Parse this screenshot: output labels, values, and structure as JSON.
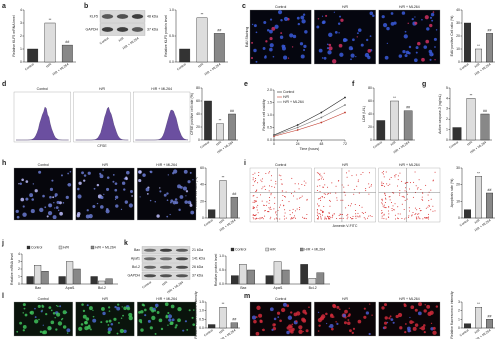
{
  "chart_data": [
    {
      "type": "bar",
      "panel": "a",
      "ylabel": "Relative KLF5 mRNA level",
      "categories": [
        "Control",
        "H/R",
        "H/R + ML264"
      ],
      "values": [
        1,
        3,
        1.3
      ],
      "colors": [
        "#333333",
        "#dddddd",
        "#888888"
      ],
      "ylim": [
        0,
        4
      ],
      "yticks": [
        0,
        1,
        2,
        3,
        4
      ],
      "marks": [
        null,
        "**",
        "##"
      ]
    },
    {
      "type": "bar",
      "panel": "b",
      "ylabel": "Relative KLF5 protein level",
      "categories": [
        "Control",
        "H/R",
        "H/R + ML264"
      ],
      "values": [
        0.25,
        0.85,
        0.55
      ],
      "colors": [
        "#333333",
        "#dddddd",
        "#888888"
      ],
      "ylim": [
        0,
        1
      ],
      "yticks": [
        {
          "value": 0,
          "label": "0.0"
        },
        {
          "value": 0.5,
          "label": "0.5"
        },
        {
          "value": 1,
          "label": "1.0"
        }
      ],
      "marks": [
        null,
        "**",
        "##"
      ]
    },
    {
      "type": "bar",
      "panel": "c",
      "ylabel": "EdU positive Cell ratio (%)",
      "categories": [
        "Control",
        "H/R",
        "H/R + ML264"
      ],
      "values": [
        30,
        10,
        22
      ],
      "colors": [
        "#333333",
        "#dddddd",
        "#888888"
      ],
      "ylim": [
        0,
        40
      ],
      "yticks": [
        0,
        10,
        20,
        30,
        40
      ],
      "marks": [
        null,
        "**",
        "##"
      ]
    },
    {
      "type": "bar",
      "panel": "d",
      "ylabel": "CFSE positive cell rate (%)",
      "categories": [
        "Control",
        "H/R",
        "H/R + ML264"
      ],
      "values": [
        60,
        25,
        40
      ],
      "colors": [
        "#333333",
        "#dddddd",
        "#888888"
      ],
      "ylim": [
        0,
        80
      ],
      "yticks": [
        0,
        20,
        40,
        60,
        80
      ],
      "marks": [
        null,
        "**",
        "##"
      ]
    },
    {
      "type": "line",
      "panel": "e",
      "ylabel": "Relative cell viability",
      "xlabel": "Time (hours)",
      "x": [
        0,
        24,
        48,
        72
      ],
      "xlim": [
        0,
        72
      ],
      "xticks": [
        0,
        24,
        48,
        72
      ],
      "ylim": [
        0,
        2
      ],
      "yticks": [
        {
          "value": 0,
          "label": "0.0"
        },
        {
          "value": 0.5,
          "label": "0.5"
        },
        {
          "value": 1,
          "label": "1.0"
        },
        {
          "value": 1.5,
          "label": "1.5"
        },
        {
          "value": 2,
          "label": "2.0"
        }
      ],
      "series": [
        {
          "name": "Control",
          "color": "#222222",
          "values": [
            0.2,
            0.6,
            1.1,
            1.7
          ]
        },
        {
          "name": "H/R",
          "color": "#c0392b",
          "values": [
            0.15,
            0.4,
            0.7,
            1.1
          ]
        },
        {
          "name": "H/R + ML264",
          "color": "#777777",
          "values": [
            0.18,
            0.5,
            0.9,
            1.4
          ]
        }
      ]
    },
    {
      "type": "bar",
      "panel": "f",
      "ylabel": "LDH (U/L)",
      "categories": [
        "Control",
        "H/R",
        "H/R + ML264"
      ],
      "values": [
        30,
        60,
        45
      ],
      "colors": [
        "#333333",
        "#dddddd",
        "#888888"
      ],
      "ylim": [
        0,
        80
      ],
      "yticks": [
        0,
        20,
        40,
        60,
        80
      ],
      "marks": [
        null,
        "**",
        "##"
      ]
    },
    {
      "type": "bar",
      "panel": "g",
      "ylabel": "Active caspase-3 (ng/mL)",
      "categories": [
        "Control",
        "H/R",
        "H/R + ML264"
      ],
      "values": [
        1.2,
        4,
        2.5
      ],
      "colors": [
        "#333333",
        "#dddddd",
        "#888888"
      ],
      "ylim": [
        0,
        5
      ],
      "yticks": [
        0,
        1,
        2,
        3,
        4,
        5
      ],
      "marks": [
        null,
        "**",
        "##"
      ]
    },
    {
      "type": "bar",
      "panel": "h",
      "ylabel": "Positive cell ratio (%)",
      "categories": [
        "Control",
        "H/R",
        "H/R + ML264"
      ],
      "values": [
        10,
        45,
        25
      ],
      "colors": [
        "#333333",
        "#dddddd",
        "#888888"
      ],
      "ylim": [
        0,
        60
      ],
      "yticks": [
        0,
        20,
        40,
        60
      ],
      "marks": [
        null,
        "**",
        "##"
      ]
    },
    {
      "type": "bar",
      "panel": "i",
      "ylabel": "Apoptosis rate (%)",
      "categories": [
        "Control",
        "H/R",
        "H/R + ML264"
      ],
      "values": [
        5,
        25,
        15
      ],
      "colors": [
        "#333333",
        "#dddddd",
        "#888888"
      ],
      "ylim": [
        0,
        30
      ],
      "yticks": [
        0,
        10,
        20,
        30
      ],
      "marks": [
        null,
        "**",
        "##"
      ]
    },
    {
      "type": "grouped",
      "panel": "j",
      "ylabel": "Relative mRNA level",
      "categories": [
        "Bax",
        "Apaf1",
        "Bcl-2"
      ],
      "ylim": [
        0,
        4
      ],
      "yticks": [
        0,
        1,
        2,
        3,
        4
      ],
      "series": [
        {
          "name": "Control",
          "color": "#333333",
          "values": [
            1,
            1,
            1
          ]
        },
        {
          "name": "H/R",
          "color": "#dddddd",
          "values": [
            2.5,
            3,
            0.4
          ]
        },
        {
          "name": "H/R + ML264",
          "color": "#888888",
          "values": [
            1.7,
            2,
            0.7
          ]
        }
      ]
    },
    {
      "type": "grouped",
      "panel": "k",
      "ylabel": "Relative protein level",
      "categories": [
        "Bax",
        "Apaf1",
        "Bcl-2"
      ],
      "ylim": [
        0,
        1
      ],
      "yticks": [
        {
          "value": 0,
          "label": "0.0"
        },
        {
          "value": 0.5,
          "label": "0.5"
        },
        {
          "value": 1,
          "label": "1.0"
        }
      ],
      "series": [
        {
          "name": "Control",
          "color": "#333333",
          "values": [
            0.3,
            0.3,
            0.7
          ]
        },
        {
          "name": "H/R",
          "color": "#dddddd",
          "values": [
            0.7,
            0.8,
            0.2
          ]
        },
        {
          "name": "H/R + ML264",
          "color": "#888888",
          "values": [
            0.5,
            0.5,
            0.4
          ]
        }
      ]
    },
    {
      "type": "bar",
      "panel": "l",
      "ylabel": "Relative fluorescence intensity",
      "categories": [
        "Control",
        "H/R",
        "H/R + ML264"
      ],
      "values": [
        0.2,
        1.2,
        0.3
      ],
      "colors": [
        "#333333",
        "#dddddd",
        "#888888"
      ],
      "ylim": [
        0,
        1.5
      ],
      "yticks": [
        {
          "value": 0,
          "label": "0.0"
        },
        {
          "value": 0.5,
          "label": "0.5"
        },
        {
          "value": 1,
          "label": "1.0"
        },
        {
          "value": 1.5,
          "label": "1.5"
        }
      ],
      "marks": [
        null,
        "**",
        "##"
      ]
    },
    {
      "type": "bar",
      "panel": "m",
      "ylabel": "Relative fluorescence intensity",
      "categories": [
        "Control",
        "H/R",
        "H/R + ML264"
      ],
      "values": [
        0.5,
        2.4,
        1
      ],
      "colors": [
        "#333333",
        "#dddddd",
        "#888888"
      ],
      "ylim": [
        0,
        3
      ],
      "yticks": [
        0,
        1,
        2,
        3
      ],
      "marks": [
        null,
        "**",
        "##"
      ]
    }
  ],
  "image_panels": [
    {
      "titles": [
        "Control",
        "H/R",
        "H/R + ML264"
      ],
      "side": "EdU Staining"
    },
    {
      "titles": [
        "Control",
        "H/R",
        "H/R + ML264"
      ],
      "xlabel": "CFSE"
    },
    {
      "titles": [
        "Control",
        "H/R",
        "H/R + ML264"
      ]
    },
    {
      "titles": [
        "Control",
        "H/R",
        "H/R + ML264"
      ],
      "xlabel": "Annexin V-FITC"
    },
    {
      "titles": [
        "Control",
        "H/R",
        "H/R + ML264"
      ]
    },
    {
      "titles": [
        "Control",
        "H/R",
        "H/R + ML264"
      ]
    }
  ],
  "blots": [
    {
      "rows": [
        "KLF5",
        "GAPDH"
      ],
      "sizes": [
        "48 kDa",
        "37 kDa"
      ],
      "lanes": [
        "Control",
        "H/R",
        "H/R + ML264"
      ]
    },
    {
      "rows": [
        "Bax",
        "Apaf1",
        "Bcl-2",
        "GAPDH"
      ],
      "sizes": [
        "21 kDa",
        "141 kDa",
        "26 kDa",
        "37 kDa"
      ],
      "lanes": [
        "Control",
        "H/R",
        "H/R + ML264"
      ]
    }
  ]
}
